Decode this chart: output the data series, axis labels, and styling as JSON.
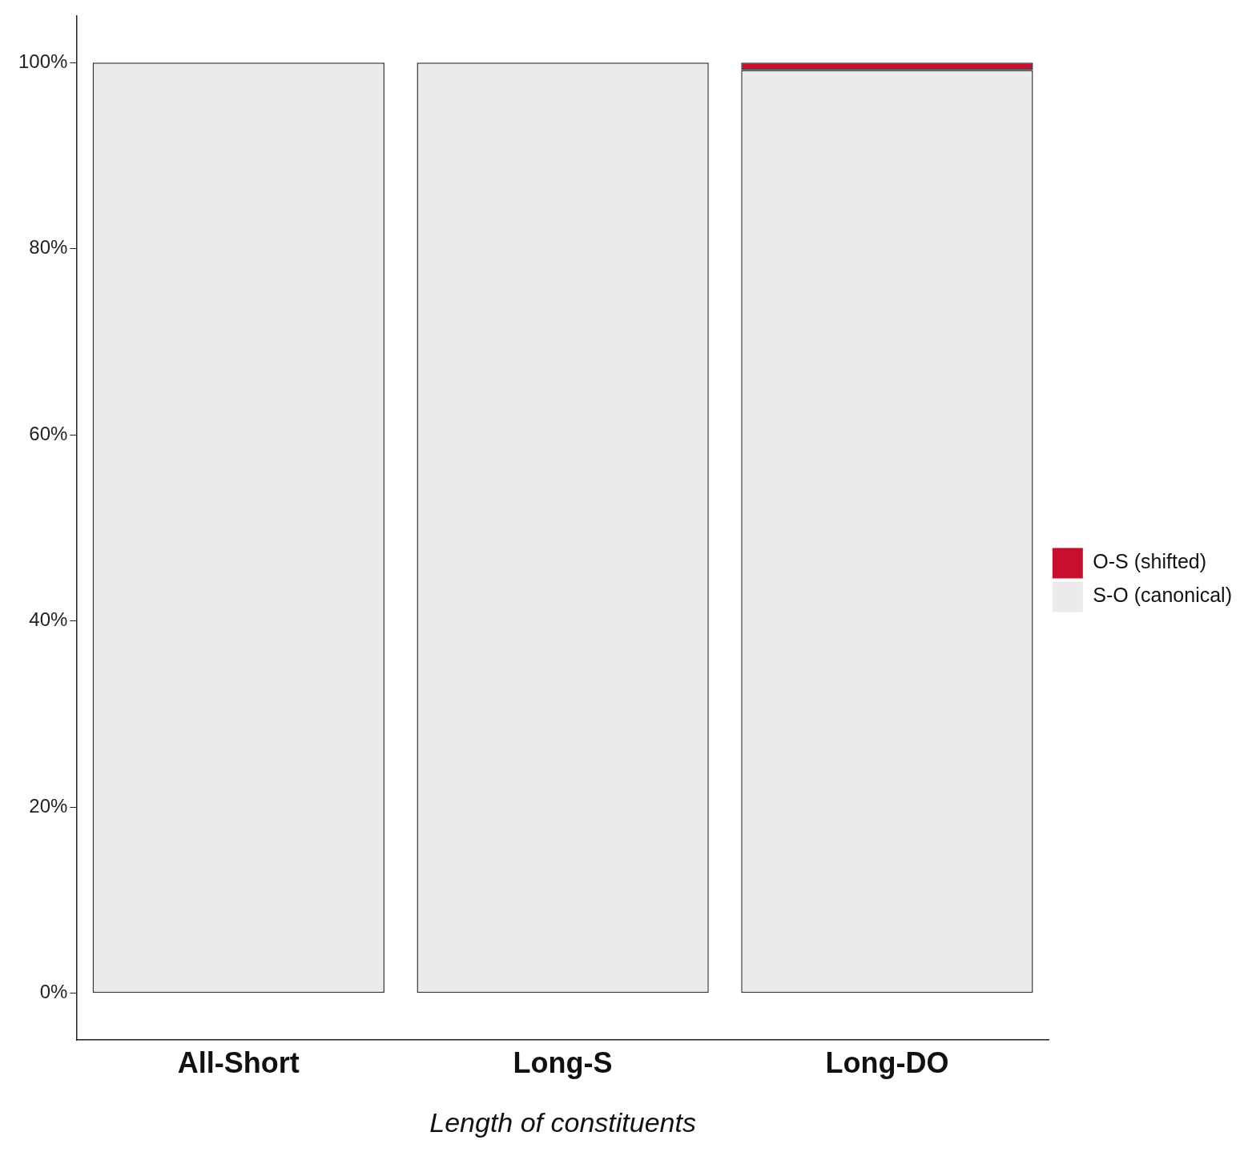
{
  "chart_data": {
    "type": "bar",
    "stacked": true,
    "xlabel": "Length of constituents",
    "categories": [
      "All-Short",
      "Long-S",
      "Long-DO"
    ],
    "series": [
      {
        "name": "S-O (canonical)",
        "color": "#ebebeb",
        "values": [
          100,
          100,
          99.2
        ]
      },
      {
        "name": "O-S (shifted)",
        "color": "#c8102e",
        "values": [
          0,
          0,
          0.8
        ]
      }
    ],
    "ylim": [
      -5,
      105
    ],
    "yticks": [
      {
        "value": 0,
        "label": "0%"
      },
      {
        "value": 20,
        "label": "20%"
      },
      {
        "value": 40,
        "label": "40%"
      },
      {
        "value": 60,
        "label": "60%"
      },
      {
        "value": 80,
        "label": "80%"
      },
      {
        "value": 100,
        "label": "100%"
      }
    ],
    "grid": false,
    "legend": "right"
  }
}
